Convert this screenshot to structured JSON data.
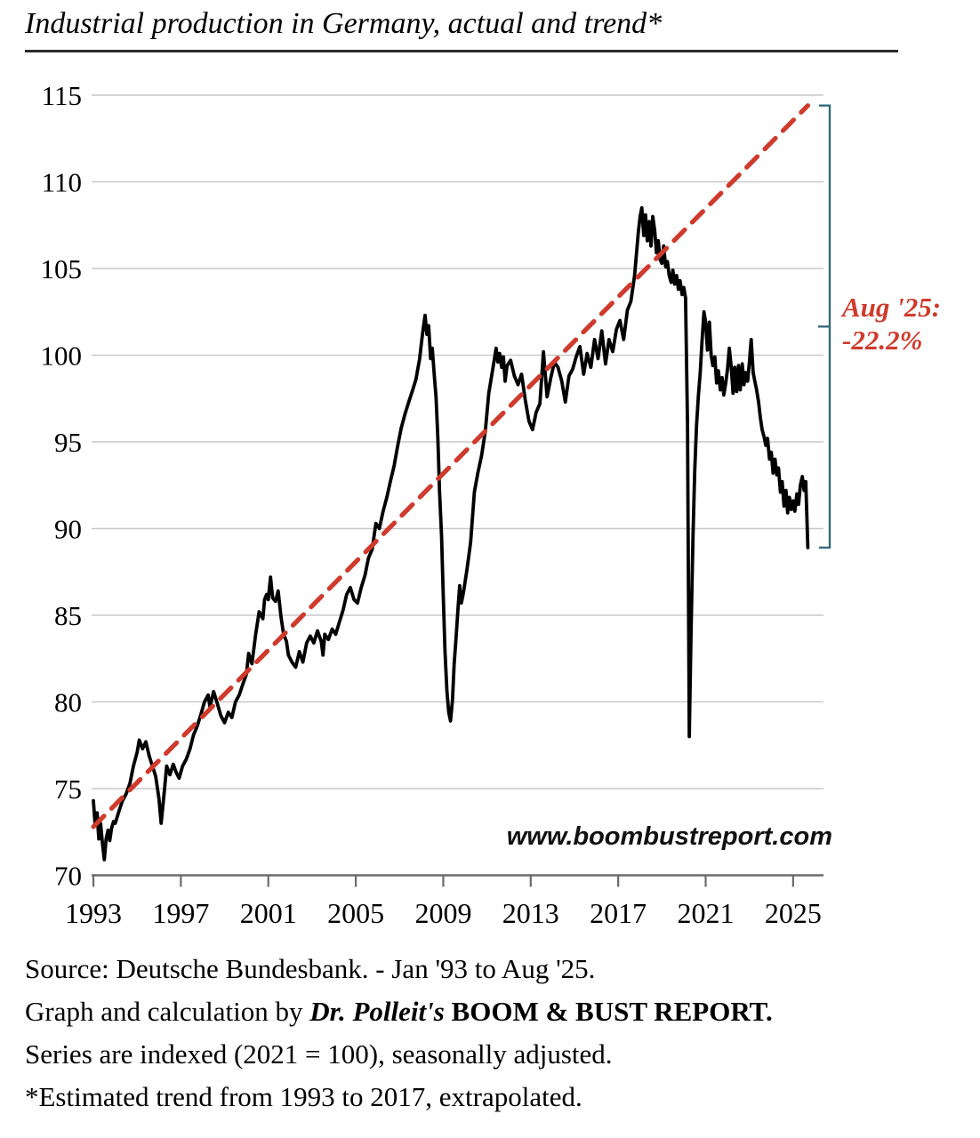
{
  "page": {
    "title": "Industrial production in Germany, actual and trend*",
    "watermark": "www.boombustreport.com"
  },
  "annotation": {
    "line1": "Aug '25:",
    "line2": "-22.2%"
  },
  "footer": {
    "line1": "Source: Deutsche Bundesbank. - Jan '93 to Aug '25.",
    "line2_prefix": "Graph and calculation by ",
    "line2_author": "Dr. Polleit's",
    "line2_brand": " BOOM & BUST REPORT.",
    "line3": "Series are indexed (2021 = 100), seasonally adjusted.",
    "line4": "*Estimated trend from 1993 to 2017, extrapolated."
  },
  "colors": {
    "actual": "#000000",
    "trend": "#cf3a2c",
    "annotation": "#cf3a2c",
    "bracket": "#33687e",
    "gridline": "#c9c9c9",
    "axis": "#6b6b6b",
    "text": "#000000"
  },
  "chart_data": {
    "type": "line",
    "title": "Industrial production in Germany, actual and trend*",
    "xlabel": "",
    "ylabel": "",
    "x_ticks": [
      1993,
      1997,
      2001,
      2005,
      2009,
      2013,
      2017,
      2021,
      2025
    ],
    "y_ticks": [
      70,
      75,
      80,
      85,
      90,
      95,
      100,
      105,
      110,
      115
    ],
    "xlim": [
      1993,
      2026.4
    ],
    "ylim": [
      70,
      115
    ],
    "grid": "horizontal",
    "legend": "none",
    "series": [
      {
        "name": "Industrial production, actual (Jan '93 - Aug '25)",
        "style": "solid",
        "color_key": "actual",
        "points": [
          [
            1993.0,
            74.3
          ],
          [
            1993.08,
            72.9
          ],
          [
            1993.17,
            73.6
          ],
          [
            1993.25,
            72.1
          ],
          [
            1993.33,
            73.0
          ],
          [
            1993.42,
            71.8
          ],
          [
            1993.5,
            70.9
          ],
          [
            1993.58,
            72.1
          ],
          [
            1993.67,
            72.6
          ],
          [
            1993.75,
            72.0
          ],
          [
            1993.83,
            72.7
          ],
          [
            1993.92,
            73.1
          ],
          [
            1994.0,
            73.0
          ],
          [
            1994.17,
            73.7
          ],
          [
            1994.33,
            74.3
          ],
          [
            1994.5,
            74.7
          ],
          [
            1994.67,
            75.3
          ],
          [
            1994.83,
            76.3
          ],
          [
            1995.0,
            77.1
          ],
          [
            1995.1,
            77.8
          ],
          [
            1995.25,
            77.3
          ],
          [
            1995.4,
            77.7
          ],
          [
            1995.55,
            76.9
          ],
          [
            1995.7,
            76.3
          ],
          [
            1995.85,
            75.7
          ],
          [
            1996.0,
            74.4
          ],
          [
            1996.1,
            73.0
          ],
          [
            1996.25,
            74.9
          ],
          [
            1996.35,
            76.3
          ],
          [
            1996.5,
            75.8
          ],
          [
            1996.65,
            76.4
          ],
          [
            1996.8,
            75.9
          ],
          [
            1996.92,
            75.6
          ],
          [
            1997.08,
            76.3
          ],
          [
            1997.25,
            76.7
          ],
          [
            1997.42,
            77.3
          ],
          [
            1997.58,
            78.1
          ],
          [
            1997.75,
            78.6
          ],
          [
            1997.92,
            79.3
          ],
          [
            1998.08,
            80.0
          ],
          [
            1998.25,
            80.4
          ],
          [
            1998.33,
            79.7
          ],
          [
            1998.5,
            80.6
          ],
          [
            1998.67,
            79.9
          ],
          [
            1998.83,
            79.2
          ],
          [
            1999.0,
            78.8
          ],
          [
            1999.17,
            79.4
          ],
          [
            1999.33,
            79.1
          ],
          [
            1999.5,
            80.0
          ],
          [
            1999.67,
            80.4
          ],
          [
            1999.83,
            81.0
          ],
          [
            2000.0,
            81.6
          ],
          [
            2000.1,
            82.8
          ],
          [
            2000.25,
            82.2
          ],
          [
            2000.42,
            83.9
          ],
          [
            2000.58,
            85.2
          ],
          [
            2000.75,
            84.8
          ],
          [
            2000.83,
            85.9
          ],
          [
            2000.92,
            86.2
          ],
          [
            2001.0,
            85.9
          ],
          [
            2001.1,
            87.2
          ],
          [
            2001.2,
            86.0
          ],
          [
            2001.33,
            85.8
          ],
          [
            2001.45,
            86.4
          ],
          [
            2001.58,
            84.9
          ],
          [
            2001.7,
            83.9
          ],
          [
            2001.83,
            83.5
          ],
          [
            2001.92,
            82.7
          ],
          [
            2002.08,
            82.3
          ],
          [
            2002.25,
            82.0
          ],
          [
            2002.42,
            82.9
          ],
          [
            2002.58,
            82.3
          ],
          [
            2002.75,
            83.4
          ],
          [
            2002.92,
            83.8
          ],
          [
            2003.08,
            83.4
          ],
          [
            2003.25,
            84.1
          ],
          [
            2003.42,
            83.5
          ],
          [
            2003.5,
            82.7
          ],
          [
            2003.58,
            83.9
          ],
          [
            2003.75,
            83.6
          ],
          [
            2003.92,
            84.2
          ],
          [
            2004.08,
            83.9
          ],
          [
            2004.25,
            84.6
          ],
          [
            2004.42,
            85.3
          ],
          [
            2004.58,
            86.2
          ],
          [
            2004.75,
            86.6
          ],
          [
            2004.92,
            85.9
          ],
          [
            2005.08,
            85.7
          ],
          [
            2005.25,
            86.6
          ],
          [
            2005.42,
            87.3
          ],
          [
            2005.58,
            88.3
          ],
          [
            2005.75,
            88.8
          ],
          [
            2005.92,
            90.3
          ],
          [
            2006.08,
            90.0
          ],
          [
            2006.25,
            91.0
          ],
          [
            2006.42,
            91.8
          ],
          [
            2006.58,
            92.7
          ],
          [
            2006.75,
            93.6
          ],
          [
            2006.92,
            94.8
          ],
          [
            2007.08,
            95.8
          ],
          [
            2007.25,
            96.6
          ],
          [
            2007.42,
            97.3
          ],
          [
            2007.58,
            97.9
          ],
          [
            2007.75,
            98.6
          ],
          [
            2007.92,
            99.8
          ],
          [
            2008.0,
            100.7
          ],
          [
            2008.08,
            101.5
          ],
          [
            2008.17,
            102.3
          ],
          [
            2008.25,
            101.2
          ],
          [
            2008.33,
            101.7
          ],
          [
            2008.42,
            99.8
          ],
          [
            2008.5,
            100.4
          ],
          [
            2008.58,
            99.0
          ],
          [
            2008.67,
            97.6
          ],
          [
            2008.75,
            95.3
          ],
          [
            2008.83,
            92.1
          ],
          [
            2008.92,
            89.6
          ],
          [
            2009.0,
            86.2
          ],
          [
            2009.08,
            82.9
          ],
          [
            2009.17,
            80.6
          ],
          [
            2009.25,
            79.4
          ],
          [
            2009.33,
            78.9
          ],
          [
            2009.42,
            80.1
          ],
          [
            2009.5,
            82.2
          ],
          [
            2009.58,
            83.6
          ],
          [
            2009.67,
            85.3
          ],
          [
            2009.75,
            86.7
          ],
          [
            2009.83,
            85.7
          ],
          [
            2009.92,
            86.3
          ],
          [
            2010.08,
            87.6
          ],
          [
            2010.25,
            89.2
          ],
          [
            2010.42,
            92.1
          ],
          [
            2010.58,
            93.2
          ],
          [
            2010.75,
            94.2
          ],
          [
            2010.92,
            95.6
          ],
          [
            2011.08,
            97.8
          ],
          [
            2011.25,
            99.1
          ],
          [
            2011.42,
            100.4
          ],
          [
            2011.5,
            99.6
          ],
          [
            2011.58,
            100.1
          ],
          [
            2011.67,
            99.3
          ],
          [
            2011.75,
            99.9
          ],
          [
            2011.83,
            98.5
          ],
          [
            2011.92,
            99.4
          ],
          [
            2012.08,
            99.7
          ],
          [
            2012.25,
            98.8
          ],
          [
            2012.42,
            98.3
          ],
          [
            2012.58,
            98.9
          ],
          [
            2012.75,
            97.4
          ],
          [
            2012.92,
            96.2
          ],
          [
            2013.08,
            95.7
          ],
          [
            2013.25,
            96.7
          ],
          [
            2013.42,
            97.2
          ],
          [
            2013.58,
            100.2
          ],
          [
            2013.75,
            97.6
          ],
          [
            2013.92,
            98.7
          ],
          [
            2014.08,
            99.6
          ],
          [
            2014.25,
            99.3
          ],
          [
            2014.42,
            98.5
          ],
          [
            2014.58,
            97.3
          ],
          [
            2014.75,
            98.8
          ],
          [
            2014.92,
            99.2
          ],
          [
            2015.08,
            99.9
          ],
          [
            2015.25,
            100.5
          ],
          [
            2015.42,
            98.9
          ],
          [
            2015.58,
            100.1
          ],
          [
            2015.75,
            99.3
          ],
          [
            2015.92,
            100.9
          ],
          [
            2016.08,
            99.8
          ],
          [
            2016.25,
            101.4
          ],
          [
            2016.42,
            99.5
          ],
          [
            2016.58,
            100.9
          ],
          [
            2016.75,
            100.2
          ],
          [
            2016.92,
            101.5
          ],
          [
            2017.08,
            102.0
          ],
          [
            2017.25,
            100.9
          ],
          [
            2017.42,
            102.6
          ],
          [
            2017.58,
            103.1
          ],
          [
            2017.75,
            104.6
          ],
          [
            2017.92,
            107.1
          ],
          [
            2018.0,
            108.0
          ],
          [
            2018.08,
            108.5
          ],
          [
            2018.17,
            106.9
          ],
          [
            2018.25,
            108.1
          ],
          [
            2018.33,
            106.6
          ],
          [
            2018.42,
            107.7
          ],
          [
            2018.5,
            106.3
          ],
          [
            2018.58,
            108.0
          ],
          [
            2018.67,
            107.2
          ],
          [
            2018.75,
            105.9
          ],
          [
            2018.83,
            106.6
          ],
          [
            2018.92,
            105.5
          ],
          [
            2019.0,
            105.3
          ],
          [
            2019.08,
            106.3
          ],
          [
            2019.17,
            105.1
          ],
          [
            2019.25,
            105.4
          ],
          [
            2019.33,
            104.6
          ],
          [
            2019.42,
            104.2
          ],
          [
            2019.5,
            104.9
          ],
          [
            2019.58,
            104.1
          ],
          [
            2019.67,
            104.6
          ],
          [
            2019.75,
            103.8
          ],
          [
            2019.83,
            104.3
          ],
          [
            2019.92,
            103.5
          ],
          [
            2020.0,
            103.9
          ],
          [
            2020.08,
            103.3
          ],
          [
            2020.17,
            96.0
          ],
          [
            2020.25,
            78.0
          ],
          [
            2020.33,
            83.8
          ],
          [
            2020.42,
            89.6
          ],
          [
            2020.5,
            93.3
          ],
          [
            2020.58,
            95.9
          ],
          [
            2020.67,
            97.7
          ],
          [
            2020.75,
            99.0
          ],
          [
            2020.83,
            100.7
          ],
          [
            2020.92,
            102.5
          ],
          [
            2021.0,
            101.9
          ],
          [
            2021.08,
            100.3
          ],
          [
            2021.17,
            101.9
          ],
          [
            2021.25,
            100.0
          ],
          [
            2021.33,
            99.4
          ],
          [
            2021.42,
            99.9
          ],
          [
            2021.5,
            98.4
          ],
          [
            2021.58,
            99.1
          ],
          [
            2021.67,
            98.0
          ],
          [
            2021.75,
            98.7
          ],
          [
            2021.83,
            97.7
          ],
          [
            2021.92,
            98.4
          ],
          [
            2022.0,
            99.2
          ],
          [
            2022.08,
            100.4
          ],
          [
            2022.17,
            99.3
          ],
          [
            2022.25,
            97.8
          ],
          [
            2022.33,
            99.3
          ],
          [
            2022.42,
            97.9
          ],
          [
            2022.5,
            99.4
          ],
          [
            2022.58,
            98.0
          ],
          [
            2022.67,
            99.5
          ],
          [
            2022.75,
            98.3
          ],
          [
            2022.83,
            99.0
          ],
          [
            2022.92,
            98.5
          ],
          [
            2023.0,
            99.6
          ],
          [
            2023.08,
            100.9
          ],
          [
            2023.17,
            99.0
          ],
          [
            2023.25,
            98.5
          ],
          [
            2023.33,
            98.0
          ],
          [
            2023.42,
            97.3
          ],
          [
            2023.5,
            96.4
          ],
          [
            2023.58,
            95.7
          ],
          [
            2023.67,
            95.3
          ],
          [
            2023.75,
            94.8
          ],
          [
            2023.83,
            95.2
          ],
          [
            2023.92,
            94.0
          ],
          [
            2024.0,
            94.4
          ],
          [
            2024.08,
            93.2
          ],
          [
            2024.17,
            94.0
          ],
          [
            2024.25,
            93.1
          ],
          [
            2024.33,
            93.5
          ],
          [
            2024.42,
            92.1
          ],
          [
            2024.5,
            92.7
          ],
          [
            2024.58,
            91.3
          ],
          [
            2024.67,
            92.2
          ],
          [
            2024.75,
            90.9
          ],
          [
            2024.83,
            91.8
          ],
          [
            2024.92,
            91.1
          ],
          [
            2025.0,
            91.6
          ],
          [
            2025.08,
            91.0
          ],
          [
            2025.17,
            92.0
          ],
          [
            2025.25,
            91.4
          ],
          [
            2025.33,
            92.5
          ],
          [
            2025.42,
            93.0
          ],
          [
            2025.5,
            92.2
          ],
          [
            2025.58,
            92.7
          ],
          [
            2025.67,
            88.9
          ]
        ]
      },
      {
        "name": "Estimated trend 1993-2017, extrapolated",
        "style": "dashed",
        "color_key": "trend",
        "points": [
          [
            1993.0,
            72.8
          ],
          [
            2025.67,
            114.4
          ]
        ]
      }
    ],
    "bracket": {
      "from_value": 114.4,
      "to_value": 88.9,
      "label": [
        "Aug '25:",
        "-22.2%"
      ]
    }
  }
}
